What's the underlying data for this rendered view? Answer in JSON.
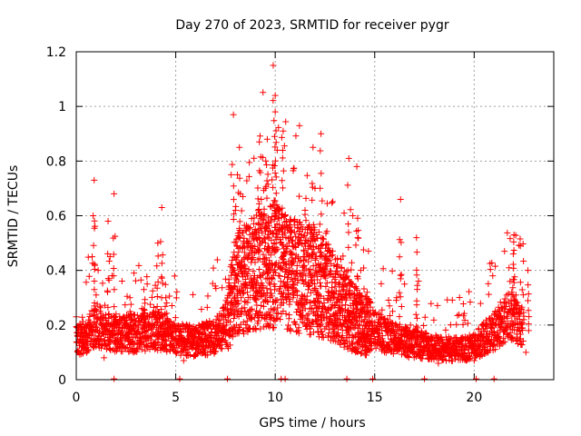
{
  "chart_data": {
    "type": "scatter",
    "title": "Day 270 of 2023, SRMTID for receiver pygr",
    "xlabel": "GPS time / hours",
    "ylabel": "SRMTID / TECUs",
    "xlim": [
      0,
      24
    ],
    "ylim": [
      0,
      1.2
    ],
    "xticks": [
      0,
      5,
      10,
      15,
      20
    ],
    "yticks": [
      0,
      0.2,
      0.4,
      0.6,
      0.8,
      1,
      1.2
    ],
    "ytick_labels": [
      "0",
      "0.2",
      "0.4",
      "0.6",
      "0.8",
      "1",
      "1.2"
    ],
    "grid": true,
    "marker": "+",
    "series": [
      {
        "name": "SRMTID",
        "color": "#ff0000",
        "profile": {
          "hours": [
            0,
            0.5,
            1,
            1.5,
            2,
            3,
            4,
            4.5,
            5,
            6,
            7,
            7.5,
            8,
            9,
            10,
            11,
            12,
            13,
            14,
            15,
            16,
            17,
            18,
            19,
            20,
            21,
            21.5,
            22,
            22.5
          ],
          "base_tecu": [
            0.14,
            0.16,
            0.2,
            0.18,
            0.17,
            0.17,
            0.18,
            0.17,
            0.15,
            0.14,
            0.16,
            0.2,
            0.35,
            0.4,
            0.42,
            0.38,
            0.36,
            0.3,
            0.22,
            0.18,
            0.15,
            0.13,
            0.12,
            0.11,
            0.12,
            0.18,
            0.22,
            0.24,
            0.18
          ]
        },
        "peaks": [
          {
            "x": 0.9,
            "y": 0.73
          },
          {
            "x": 1.6,
            "y": 0.58
          },
          {
            "x": 1.9,
            "y": 0.68
          },
          {
            "x": 2.7,
            "y": 0.3
          },
          {
            "x": 3.4,
            "y": 0.33
          },
          {
            "x": 4.1,
            "y": 0.5
          },
          {
            "x": 4.3,
            "y": 0.63
          },
          {
            "x": 4.5,
            "y": 0.3
          },
          {
            "x": 7.9,
            "y": 0.97
          },
          {
            "x": 8.2,
            "y": 0.85
          },
          {
            "x": 9.2,
            "y": 0.87
          },
          {
            "x": 9.6,
            "y": 0.88
          },
          {
            "x": 9.9,
            "y": 1.15
          },
          {
            "x": 10.0,
            "y": 1.04
          },
          {
            "x": 10.0,
            "y": 0.98
          },
          {
            "x": 10.4,
            "y": 0.91
          },
          {
            "x": 11.9,
            "y": 0.85
          },
          {
            "x": 12.3,
            "y": 0.9
          },
          {
            "x": 13.7,
            "y": 0.81
          },
          {
            "x": 14.1,
            "y": 0.78
          },
          {
            "x": 16.3,
            "y": 0.66
          },
          {
            "x": 17.1,
            "y": 0.52
          },
          {
            "x": 22.0,
            "y": 0.53
          },
          {
            "x": 22.7,
            "y": 0.4
          }
        ],
        "points": [
          {
            "x": 0.0,
            "y": 0.23
          },
          {
            "x": 0.1,
            "y": 0.1
          },
          {
            "x": 0.2,
            "y": 0.16
          },
          {
            "x": 0.3,
            "y": 0.12
          },
          {
            "x": 0.4,
            "y": 0.19
          },
          {
            "x": 0.5,
            "y": 0.14
          },
          {
            "x": 0.6,
            "y": 0.11
          },
          {
            "x": 0.7,
            "y": 0.21
          },
          {
            "x": 0.8,
            "y": 0.45
          },
          {
            "x": 0.85,
            "y": 0.6
          },
          {
            "x": 1.0,
            "y": 0.31
          },
          {
            "x": 1.1,
            "y": 0.4
          },
          {
            "x": 1.2,
            "y": 0.25
          },
          {
            "x": 1.3,
            "y": 0.13
          },
          {
            "x": 1.4,
            "y": 0.08
          },
          {
            "x": 1.5,
            "y": 0.18
          },
          {
            "x": 1.7,
            "y": 0.45
          },
          {
            "x": 1.8,
            "y": 0.38
          },
          {
            "x": 2.0,
            "y": 0.24
          },
          {
            "x": 2.1,
            "y": 0.13
          },
          {
            "x": 2.3,
            "y": 0.19
          },
          {
            "x": 2.5,
            "y": 0.15
          },
          {
            "x": 2.9,
            "y": 0.1
          },
          {
            "x": 3.1,
            "y": 0.2
          },
          {
            "x": 3.3,
            "y": 0.26
          },
          {
            "x": 3.6,
            "y": 0.12
          },
          {
            "x": 3.8,
            "y": 0.16
          },
          {
            "x": 4.0,
            "y": 0.22
          },
          {
            "x": 4.6,
            "y": 0.18
          },
          {
            "x": 4.8,
            "y": 0.12
          },
          {
            "x": 5.0,
            "y": 0.1
          },
          {
            "x": 5.2,
            "y": 0.15
          },
          {
            "x": 5.4,
            "y": 0.07
          },
          {
            "x": 5.6,
            "y": 0.19
          },
          {
            "x": 5.8,
            "y": 0.13
          },
          {
            "x": 6.0,
            "y": 0.11
          },
          {
            "x": 6.3,
            "y": 0.15
          },
          {
            "x": 6.6,
            "y": 0.09
          },
          {
            "x": 6.8,
            "y": 0.14
          },
          {
            "x": 7.0,
            "y": 0.2
          },
          {
            "x": 7.2,
            "y": 0.24
          },
          {
            "x": 7.4,
            "y": 0.22
          },
          {
            "x": 7.6,
            "y": 0.26
          },
          {
            "x": 7.8,
            "y": 0.42
          },
          {
            "x": 8.0,
            "y": 0.62
          },
          {
            "x": 8.1,
            "y": 0.75
          },
          {
            "x": 8.4,
            "y": 0.5
          },
          {
            "x": 8.6,
            "y": 0.32
          },
          {
            "x": 8.8,
            "y": 0.44
          },
          {
            "x": 9.0,
            "y": 0.55
          },
          {
            "x": 9.3,
            "y": 0.66
          },
          {
            "x": 9.5,
            "y": 0.7
          },
          {
            "x": 9.7,
            "y": 0.48
          },
          {
            "x": 10.2,
            "y": 0.55
          },
          {
            "x": 10.5,
            "y": 0.6
          },
          {
            "x": 10.7,
            "y": 0.4
          },
          {
            "x": 10.9,
            "y": 0.3
          },
          {
            "x": 11.2,
            "y": 0.5
          },
          {
            "x": 11.5,
            "y": 0.62
          },
          {
            "x": 11.7,
            "y": 0.45
          },
          {
            "x": 12.0,
            "y": 0.7
          },
          {
            "x": 12.2,
            "y": 0.54
          },
          {
            "x": 12.5,
            "y": 0.38
          },
          {
            "x": 12.8,
            "y": 0.26
          },
          {
            "x": 13.0,
            "y": 0.34
          },
          {
            "x": 13.3,
            "y": 0.44
          },
          {
            "x": 13.5,
            "y": 0.3
          },
          {
            "x": 13.9,
            "y": 0.6
          },
          {
            "x": 14.3,
            "y": 0.4
          },
          {
            "x": 14.5,
            "y": 0.22
          },
          {
            "x": 14.8,
            "y": 0.16
          },
          {
            "x": 15.0,
            "y": 0.2
          },
          {
            "x": 15.3,
            "y": 0.13
          },
          {
            "x": 15.6,
            "y": 0.18
          },
          {
            "x": 15.9,
            "y": 0.25
          },
          {
            "x": 16.1,
            "y": 0.3
          },
          {
            "x": 16.5,
            "y": 0.35
          },
          {
            "x": 16.8,
            "y": 0.2
          },
          {
            "x": 17.0,
            "y": 0.12
          },
          {
            "x": 17.3,
            "y": 0.08
          },
          {
            "x": 17.6,
            "y": 0.14
          },
          {
            "x": 17.9,
            "y": 0.1
          },
          {
            "x": 18.2,
            "y": 0.06
          },
          {
            "x": 18.5,
            "y": 0.12
          },
          {
            "x": 18.8,
            "y": 0.09
          },
          {
            "x": 19.1,
            "y": 0.14
          },
          {
            "x": 19.4,
            "y": 0.08
          },
          {
            "x": 19.7,
            "y": 0.11
          },
          {
            "x": 20.0,
            "y": 0.07
          },
          {
            "x": 20.3,
            "y": 0.12
          },
          {
            "x": 20.6,
            "y": 0.15
          },
          {
            "x": 20.9,
            "y": 0.19
          },
          {
            "x": 21.2,
            "y": 0.23
          },
          {
            "x": 21.5,
            "y": 0.28
          },
          {
            "x": 21.8,
            "y": 0.36
          },
          {
            "x": 22.1,
            "y": 0.31
          },
          {
            "x": 22.3,
            "y": 0.15
          },
          {
            "x": 22.5,
            "y": 0.22
          },
          {
            "x": 22.6,
            "y": 0.1
          }
        ]
      }
    ]
  }
}
